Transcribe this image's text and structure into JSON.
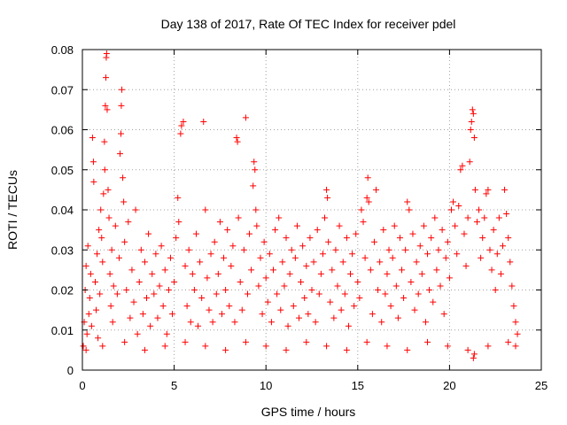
{
  "chart_data": {
    "type": "scatter",
    "title": "Day 138 of 2017, Rate Of TEC Index for receiver pdel",
    "xlabel": "GPS time / hours",
    "ylabel": "ROTI / TECUs",
    "xlim": [
      0,
      25
    ],
    "ylim": [
      0,
      0.08
    ],
    "xticks": [
      0,
      5,
      10,
      15,
      20,
      25
    ],
    "yticks": [
      0,
      0.01,
      0.02,
      0.03,
      0.04,
      0.05,
      0.06,
      0.07,
      0.08
    ],
    "xtick_labels": [
      "0",
      "5",
      "10",
      "15",
      "20",
      "25"
    ],
    "ytick_labels": [
      "0",
      "0.01",
      "0.02",
      "0.03",
      "0.04",
      "0.05",
      "0.06",
      "0.07",
      "0.08"
    ],
    "grid": true,
    "marker": "+",
    "color": "#ff0000",
    "series": [
      {
        "points": [
          [
            0.05,
            0.006
          ],
          [
            0.1,
            0.012
          ],
          [
            0.15,
            0.02
          ],
          [
            0.2,
            0.026
          ],
          [
            0.25,
            0.009
          ],
          [
            0.3,
            0.031
          ],
          [
            0.35,
            0.014
          ],
          [
            0.4,
            0.018
          ],
          [
            0.45,
            0.024
          ],
          [
            0.5,
            0.011
          ],
          [
            0.55,
            0.058
          ],
          [
            0.6,
            0.052
          ],
          [
            0.62,
            0.047
          ],
          [
            0.7,
            0.022
          ],
          [
            0.75,
            0.015
          ],
          [
            0.8,
            0.029
          ],
          [
            0.85,
            0.008
          ],
          [
            0.9,
            0.035
          ],
          [
            0.95,
            0.019
          ],
          [
            1.0,
            0.04
          ],
          [
            1.05,
            0.033
          ],
          [
            1.1,
            0.027
          ],
          [
            1.15,
            0.044
          ],
          [
            1.2,
            0.057
          ],
          [
            1.22,
            0.05
          ],
          [
            1.25,
            0.066
          ],
          [
            1.28,
            0.073
          ],
          [
            1.3,
            0.078
          ],
          [
            1.32,
            0.079
          ],
          [
            1.35,
            0.065
          ],
          [
            1.4,
            0.045
          ],
          [
            1.45,
            0.038
          ],
          [
            1.5,
            0.024
          ],
          [
            1.55,
            0.016
          ],
          [
            1.6,
            0.03
          ],
          [
            1.65,
            0.012
          ],
          [
            1.7,
            0.021
          ],
          [
            1.8,
            0.036
          ],
          [
            1.9,
            0.019
          ],
          [
            2.0,
            0.028
          ],
          [
            2.05,
            0.054
          ],
          [
            2.1,
            0.059
          ],
          [
            2.12,
            0.066
          ],
          [
            2.15,
            0.07
          ],
          [
            2.2,
            0.048
          ],
          [
            2.25,
            0.042
          ],
          [
            2.3,
            0.032
          ],
          [
            2.4,
            0.02
          ],
          [
            2.5,
            0.037
          ],
          [
            2.6,
            0.013
          ],
          [
            2.7,
            0.025
          ],
          [
            2.8,
            0.017
          ],
          [
            2.9,
            0.04
          ],
          [
            3.0,
            0.009
          ],
          [
            3.1,
            0.022
          ],
          [
            3.2,
            0.03
          ],
          [
            3.3,
            0.014
          ],
          [
            3.4,
            0.027
          ],
          [
            3.5,
            0.018
          ],
          [
            3.6,
            0.034
          ],
          [
            3.7,
            0.011
          ],
          [
            3.8,
            0.024
          ],
          [
            3.9,
            0.019
          ],
          [
            4.0,
            0.029
          ],
          [
            4.1,
            0.013
          ],
          [
            4.2,
            0.021
          ],
          [
            4.3,
            0.031
          ],
          [
            4.4,
            0.016
          ],
          [
            4.5,
            0.025
          ],
          [
            4.6,
            0.009
          ],
          [
            4.7,
            0.02
          ],
          [
            4.8,
            0.028
          ],
          [
            4.9,
            0.014
          ],
          [
            5.0,
            0.022
          ],
          [
            5.1,
            0.033
          ],
          [
            5.2,
            0.043
          ],
          [
            5.25,
            0.037
          ],
          [
            5.35,
            0.059
          ],
          [
            5.4,
            0.061
          ],
          [
            5.5,
            0.062
          ],
          [
            5.6,
            0.026
          ],
          [
            5.7,
            0.016
          ],
          [
            5.8,
            0.03
          ],
          [
            5.9,
            0.012
          ],
          [
            6.0,
            0.024
          ],
          [
            6.1,
            0.02
          ],
          [
            6.2,
            0.034
          ],
          [
            6.3,
            0.011
          ],
          [
            6.4,
            0.027
          ],
          [
            6.5,
            0.018
          ],
          [
            6.6,
            0.062
          ],
          [
            6.7,
            0.04
          ],
          [
            6.8,
            0.023
          ],
          [
            6.9,
            0.015
          ],
          [
            7.0,
            0.029
          ],
          [
            7.1,
            0.012
          ],
          [
            7.2,
            0.032
          ],
          [
            7.3,
            0.019
          ],
          [
            7.4,
            0.024
          ],
          [
            7.5,
            0.037
          ],
          [
            7.6,
            0.014
          ],
          [
            7.7,
            0.028
          ],
          [
            7.8,
            0.02
          ],
          [
            7.9,
            0.035
          ],
          [
            8.0,
            0.016
          ],
          [
            8.1,
            0.026
          ],
          [
            8.2,
            0.031
          ],
          [
            8.3,
            0.012
          ],
          [
            8.4,
            0.058
          ],
          [
            8.45,
            0.057
          ],
          [
            8.5,
            0.038
          ],
          [
            8.6,
            0.022
          ],
          [
            8.7,
            0.015
          ],
          [
            8.8,
            0.03
          ],
          [
            8.9,
            0.063
          ],
          [
            9.0,
            0.019
          ],
          [
            9.1,
            0.034
          ],
          [
            9.2,
            0.025
          ],
          [
            9.3,
            0.046
          ],
          [
            9.35,
            0.052
          ],
          [
            9.4,
            0.05
          ],
          [
            9.45,
            0.04
          ],
          [
            9.5,
            0.036
          ],
          [
            9.6,
            0.021
          ],
          [
            9.7,
            0.028
          ],
          [
            9.8,
            0.014
          ],
          [
            9.9,
            0.032
          ],
          [
            10.0,
            0.023
          ],
          [
            10.1,
            0.017
          ],
          [
            10.2,
            0.029
          ],
          [
            10.3,
            0.012
          ],
          [
            10.4,
            0.025
          ],
          [
            10.5,
            0.035
          ],
          [
            10.6,
            0.019
          ],
          [
            10.7,
            0.038
          ],
          [
            10.8,
            0.015
          ],
          [
            10.9,
            0.027
          ],
          [
            11.0,
            0.021
          ],
          [
            11.1,
            0.033
          ],
          [
            11.2,
            0.011
          ],
          [
            11.3,
            0.024
          ],
          [
            11.4,
            0.03
          ],
          [
            11.5,
            0.016
          ],
          [
            11.6,
            0.028
          ],
          [
            11.7,
            0.036
          ],
          [
            11.8,
            0.013
          ],
          [
            11.9,
            0.022
          ],
          [
            12.0,
            0.031
          ],
          [
            12.1,
            0.018
          ],
          [
            12.2,
            0.026
          ],
          [
            12.3,
            0.014
          ],
          [
            12.4,
            0.033
          ],
          [
            12.5,
            0.02
          ],
          [
            12.6,
            0.027
          ],
          [
            12.7,
            0.012
          ],
          [
            12.8,
            0.035
          ],
          [
            12.9,
            0.019
          ],
          [
            13.0,
            0.024
          ],
          [
            13.1,
            0.029
          ],
          [
            13.2,
            0.038
          ],
          [
            13.3,
            0.045
          ],
          [
            13.35,
            0.043
          ],
          [
            13.4,
            0.032
          ],
          [
            13.5,
            0.017
          ],
          [
            13.6,
            0.025
          ],
          [
            13.7,
            0.013
          ],
          [
            13.8,
            0.03
          ],
          [
            13.9,
            0.021
          ],
          [
            14.0,
            0.036
          ],
          [
            14.1,
            0.015
          ],
          [
            14.2,
            0.027
          ],
          [
            14.3,
            0.019
          ],
          [
            14.4,
            0.033
          ],
          [
            14.5,
            0.011
          ],
          [
            14.6,
            0.024
          ],
          [
            14.7,
            0.029
          ],
          [
            14.8,
            0.016
          ],
          [
            14.9,
            0.034
          ],
          [
            15.0,
            0.022
          ],
          [
            15.1,
            0.018
          ],
          [
            15.2,
            0.04
          ],
          [
            15.3,
            0.037
          ],
          [
            15.4,
            0.028
          ],
          [
            15.5,
            0.043
          ],
          [
            15.55,
            0.048
          ],
          [
            15.6,
            0.042
          ],
          [
            15.7,
            0.025
          ],
          [
            15.8,
            0.014
          ],
          [
            15.9,
            0.032
          ],
          [
            16.0,
            0.045
          ],
          [
            16.1,
            0.02
          ],
          [
            16.2,
            0.027
          ],
          [
            16.3,
            0.012
          ],
          [
            16.4,
            0.035
          ],
          [
            16.5,
            0.019
          ],
          [
            16.6,
            0.024
          ],
          [
            16.7,
            0.03
          ],
          [
            16.8,
            0.016
          ],
          [
            16.9,
            0.028
          ],
          [
            17.0,
            0.036
          ],
          [
            17.1,
            0.021
          ],
          [
            17.2,
            0.013
          ],
          [
            17.3,
            0.033
          ],
          [
            17.4,
            0.025
          ],
          [
            17.5,
            0.018
          ],
          [
            17.6,
            0.03
          ],
          [
            17.7,
            0.042
          ],
          [
            17.8,
            0.04
          ],
          [
            17.9,
            0.022
          ],
          [
            18.0,
            0.034
          ],
          [
            18.1,
            0.015
          ],
          [
            18.2,
            0.027
          ],
          [
            18.3,
            0.019
          ],
          [
            18.4,
            0.031
          ],
          [
            18.5,
            0.024
          ],
          [
            18.6,
            0.036
          ],
          [
            18.7,
            0.012
          ],
          [
            18.8,
            0.029
          ],
          [
            18.9,
            0.02
          ],
          [
            19.0,
            0.033
          ],
          [
            19.1,
            0.017
          ],
          [
            19.2,
            0.038
          ],
          [
            19.3,
            0.025
          ],
          [
            19.4,
            0.03
          ],
          [
            19.5,
            0.021
          ],
          [
            19.6,
            0.035
          ],
          [
            19.7,
            0.014
          ],
          [
            19.8,
            0.028
          ],
          [
            19.9,
            0.032
          ],
          [
            20.0,
            0.023
          ],
          [
            20.1,
            0.04
          ],
          [
            20.2,
            0.042
          ],
          [
            20.3,
            0.036
          ],
          [
            20.4,
            0.029
          ],
          [
            20.5,
            0.041
          ],
          [
            20.6,
            0.05
          ],
          [
            20.7,
            0.051
          ],
          [
            20.8,
            0.034
          ],
          [
            20.9,
            0.026
          ],
          [
            21.0,
            0.038
          ],
          [
            21.1,
            0.052
          ],
          [
            21.15,
            0.06
          ],
          [
            21.2,
            0.062
          ],
          [
            21.25,
            0.065
          ],
          [
            21.3,
            0.064
          ],
          [
            21.35,
            0.058
          ],
          [
            21.4,
            0.045
          ],
          [
            21.5,
            0.037
          ],
          [
            21.6,
            0.04
          ],
          [
            21.7,
            0.028
          ],
          [
            21.8,
            0.033
          ],
          [
            21.9,
            0.038
          ],
          [
            22.0,
            0.044
          ],
          [
            22.1,
            0.045
          ],
          [
            22.2,
            0.03
          ],
          [
            22.3,
            0.025
          ],
          [
            22.4,
            0.035
          ],
          [
            22.5,
            0.02
          ],
          [
            22.6,
            0.029
          ],
          [
            22.7,
            0.038
          ],
          [
            22.8,
            0.024
          ],
          [
            22.9,
            0.031
          ],
          [
            23.0,
            0.045
          ],
          [
            23.1,
            0.039
          ],
          [
            23.2,
            0.033
          ],
          [
            23.3,
            0.027
          ],
          [
            23.4,
            0.021
          ],
          [
            23.5,
            0.016
          ],
          [
            23.6,
            0.012
          ],
          [
            23.7,
            0.009
          ],
          [
            0.2,
            0.005
          ],
          [
            1.1,
            0.006
          ],
          [
            2.3,
            0.007
          ],
          [
            3.4,
            0.005
          ],
          [
            4.5,
            0.006
          ],
          [
            5.6,
            0.007
          ],
          [
            6.7,
            0.006
          ],
          [
            7.8,
            0.005
          ],
          [
            8.9,
            0.007
          ],
          [
            10.0,
            0.006
          ],
          [
            11.1,
            0.005
          ],
          [
            12.2,
            0.007
          ],
          [
            13.3,
            0.006
          ],
          [
            14.4,
            0.005
          ],
          [
            15.5,
            0.007
          ],
          [
            16.6,
            0.006
          ],
          [
            17.7,
            0.005
          ],
          [
            18.8,
            0.007
          ],
          [
            19.9,
            0.006
          ],
          [
            21.0,
            0.005
          ],
          [
            21.3,
            0.003
          ],
          [
            21.35,
            0.004
          ],
          [
            22.1,
            0.006
          ],
          [
            23.2,
            0.007
          ],
          [
            23.6,
            0.006
          ]
        ]
      }
    ]
  }
}
